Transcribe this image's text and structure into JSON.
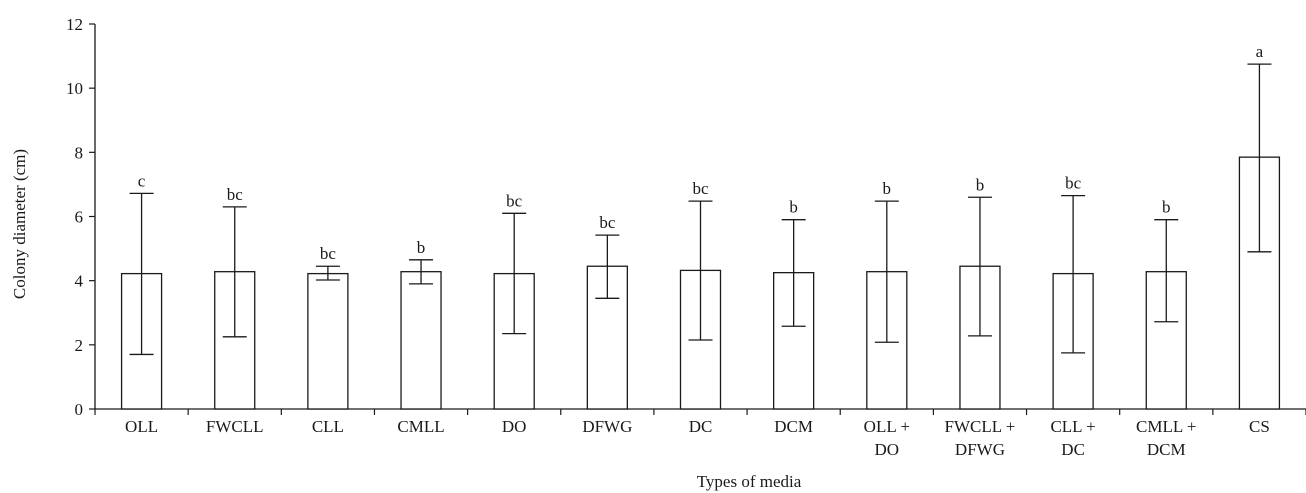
{
  "chart_data": {
    "type": "bar",
    "title": "",
    "xlabel": "Types of media",
    "ylabel": "Colony diameter (cm)",
    "ylim": [
      0,
      12
    ],
    "yticks": [
      0,
      2,
      4,
      6,
      8,
      10,
      12
    ],
    "grid": false,
    "legend": "none",
    "categories": [
      [
        "OLL"
      ],
      [
        "FWCLL"
      ],
      [
        "CLL"
      ],
      [
        "CMLL"
      ],
      [
        "DO"
      ],
      [
        "DFWG"
      ],
      [
        "DC"
      ],
      [
        "DCM"
      ],
      [
        "OLL +",
        "DO"
      ],
      [
        "FWCLL +",
        "DFWG"
      ],
      [
        "CLL +",
        "DC"
      ],
      [
        "CMLL +",
        "DCM"
      ],
      [
        "CS"
      ]
    ],
    "values": [
      4.22,
      4.28,
      4.22,
      4.28,
      4.22,
      4.45,
      4.32,
      4.25,
      4.28,
      4.45,
      4.22,
      4.28,
      7.85
    ],
    "error_lower": [
      1.7,
      2.25,
      4.02,
      3.9,
      2.35,
      3.45,
      2.15,
      2.58,
      2.08,
      2.28,
      1.75,
      2.72,
      4.9
    ],
    "error_upper": [
      6.72,
      6.3,
      4.45,
      4.65,
      6.1,
      5.42,
      6.48,
      5.9,
      6.48,
      6.6,
      6.65,
      5.9,
      10.75
    ],
    "significance": [
      "c",
      "bc",
      "bc",
      "b",
      "bc",
      "bc",
      "bc",
      "b",
      "b",
      "b",
      "bc",
      "b",
      "a"
    ],
    "colors": {
      "bar_fill": "#ffffff",
      "stroke": "#1a1a1a"
    }
  }
}
